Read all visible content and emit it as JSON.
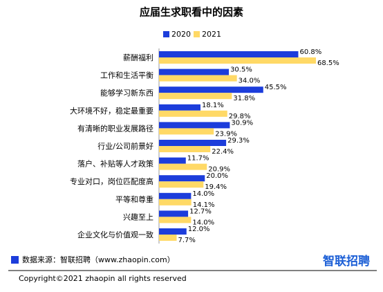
{
  "chart_data": {
    "type": "bar",
    "orientation": "horizontal",
    "title": "应届生求职看中的因素",
    "categories": [
      "薪酬福利",
      "工作和生活平衡",
      "能够学习新东西",
      "大环境不好，稳定最重要",
      "有清晰的职业发展路径",
      "行业/公司前景好",
      "落户、补贴等人才政策",
      "专业对口，岗位匹配度高",
      "平等和尊重",
      "兴趣至上",
      "企业文化与价值观一致"
    ],
    "series": [
      {
        "name": "2020",
        "color": "#1c3ddb",
        "values": [
          60.8,
          30.5,
          45.5,
          18.1,
          30.9,
          29.3,
          11.7,
          20.0,
          14.0,
          12.7,
          12.0
        ],
        "value_labels": [
          "60.8%",
          "30.5%",
          "45.5%",
          "18.1%",
          "30.9%",
          "29.3%",
          "11.7%",
          "20.0%",
          "14.0%",
          "12.7%",
          "12.0%"
        ]
      },
      {
        "name": "2021",
        "color": "#ffd966",
        "values": [
          68.5,
          34.0,
          31.8,
          29.8,
          23.9,
          22.4,
          20.9,
          19.4,
          14.1,
          14.0,
          7.7
        ],
        "value_labels": [
          "68.5%",
          "34.0%",
          "31.8%",
          "29.8%",
          "23.9%",
          "22.4%",
          "20.9%",
          "19.4%",
          "14.1%",
          "14.0%",
          "7.7%"
        ]
      }
    ],
    "legend": "top",
    "source": "数据来源：智联招聘（www.zhaopin.com）",
    "brand": "智联招聘",
    "copyright": "Copyright©2021 zhaopin all rights reserved"
  }
}
